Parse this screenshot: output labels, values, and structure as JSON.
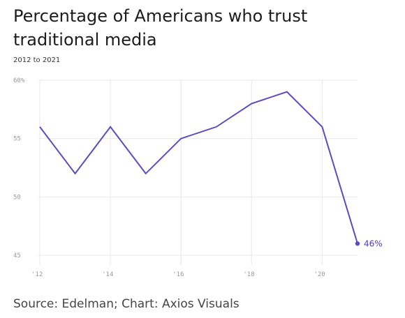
{
  "chart_data": {
    "type": "line",
    "title": "Percentage of Americans who trust traditional media",
    "subtitle": "2012 to 2021",
    "source": "Source: Edelman; Chart: Axios Visuals",
    "x": [
      2012,
      2013,
      2014,
      2015,
      2016,
      2017,
      2018,
      2019,
      2020,
      2021
    ],
    "series": [
      {
        "values": [
          56,
          52,
          56,
          52,
          55,
          56,
          58,
          59,
          56,
          46
        ]
      }
    ],
    "xlim": [
      2012,
      2021
    ],
    "ylim": [
      45,
      60
    ],
    "y_ticks": [
      {
        "value": 60,
        "label": "60%"
      },
      {
        "value": 55,
        "label": "55"
      },
      {
        "value": 50,
        "label": "50"
      },
      {
        "value": 45,
        "label": "45"
      }
    ],
    "x_ticks": [
      {
        "value": 2012,
        "label": "'12"
      },
      {
        "value": 2014,
        "label": "'14"
      },
      {
        "value": 2016,
        "label": "'16"
      },
      {
        "value": 2018,
        "label": "'18"
      },
      {
        "value": 2020,
        "label": "'20"
      }
    ],
    "end_label": "46%",
    "grid": true,
    "legend": "none",
    "line_color": "#5b4bc4",
    "grid_color": "#e8e8e8"
  }
}
